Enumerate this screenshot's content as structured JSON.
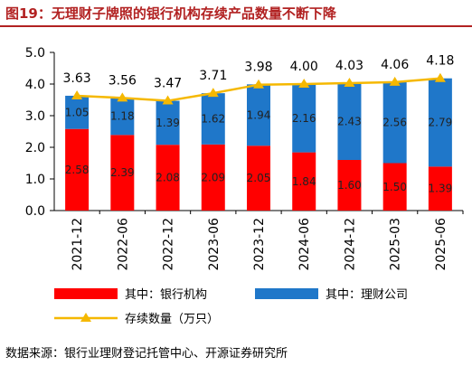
{
  "figure_title": "图19：无理财子牌照的银行机构存续产品数量不断下降",
  "source_note": "数据来源：银行业理财登记托管中心、开源证券研究所",
  "colors": {
    "bank": "#ff0000",
    "wealth": "#1f77c9",
    "line": "#f5b800",
    "title": "#b22222"
  },
  "chart_data": {
    "type": "bar",
    "stacked": true,
    "categories": [
      "2021-12",
      "2022-06",
      "2022-12",
      "2023-06",
      "2023-12",
      "2024-06",
      "2024-12",
      "2025-03",
      "2025-06"
    ],
    "series": [
      {
        "name": "其中：银行机构",
        "type": "bar",
        "values": [
          2.58,
          2.39,
          2.08,
          2.09,
          2.05,
          1.84,
          1.6,
          1.5,
          1.39
        ]
      },
      {
        "name": "其中：理财公司",
        "type": "bar",
        "values": [
          1.05,
          1.18,
          1.39,
          1.62,
          1.94,
          2.16,
          2.43,
          2.56,
          2.79
        ]
      },
      {
        "name": "存续数量（万只）",
        "type": "line",
        "values": [
          3.63,
          3.56,
          3.47,
          3.71,
          3.98,
          4.0,
          4.03,
          4.06,
          4.18
        ]
      }
    ],
    "bar_labels": [
      [
        "2.58",
        "2.39",
        "2.08",
        "2.09",
        "2.05",
        "1.84",
        "1.60",
        "1.50",
        "1.39"
      ],
      [
        "1.05",
        "1.18",
        "1.39",
        "1.62",
        "1.94",
        "2.16",
        "2.43",
        "2.56",
        "2.79"
      ]
    ],
    "line_labels": [
      "3.63",
      "3.56",
      "3.47",
      "3.71",
      "3.98",
      "4.00",
      "4.03",
      "4.06",
      "4.18"
    ],
    "yticks": [
      "0.0",
      "1.0",
      "2.0",
      "3.0",
      "4.0",
      "5.0"
    ],
    "ylim": [
      0,
      5
    ],
    "grid": false,
    "legend_position": "bottom"
  }
}
